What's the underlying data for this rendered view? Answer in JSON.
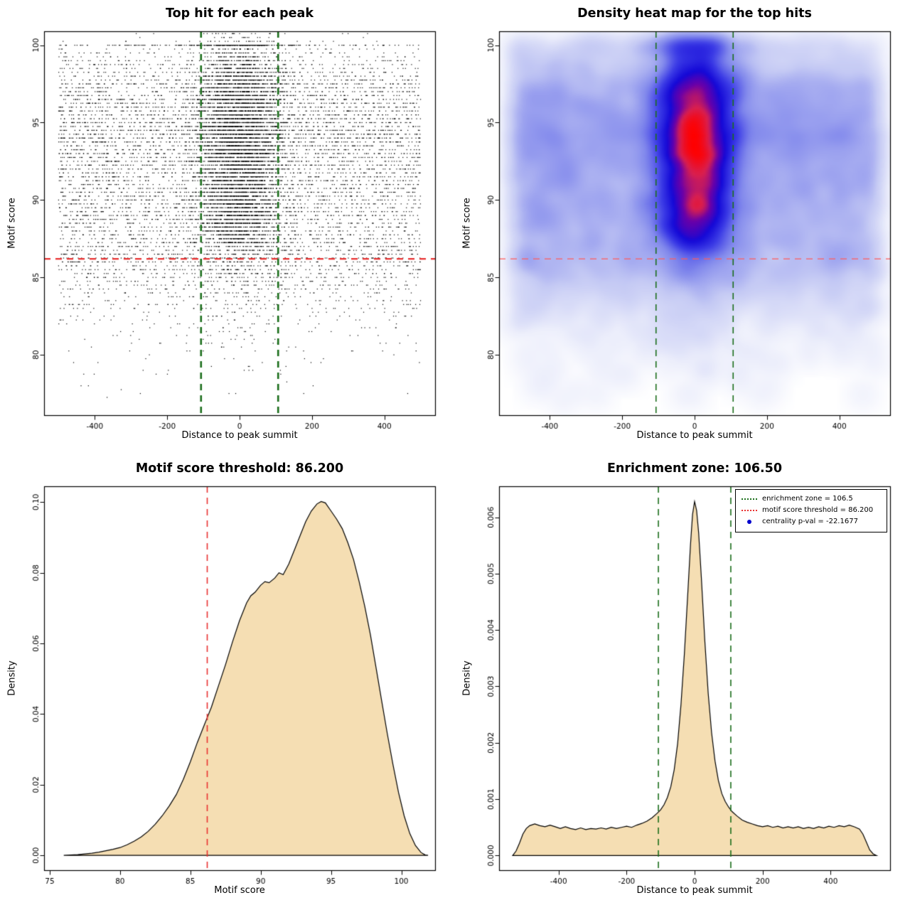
{
  "figure": {
    "background": "#ffffff"
  },
  "chart_data": [
    {
      "type": "scatter",
      "title": "Top hit for each peak",
      "xlabel": "Distance to peak summit",
      "ylabel": "Motif score",
      "xlim": [
        -540,
        540
      ],
      "ylim": [
        76.1,
        100.9
      ],
      "xticks": [
        -400,
        -200,
        0,
        200,
        400
      ],
      "xtick_labels": [
        "-400",
        "-200",
        "0",
        "200",
        "400"
      ],
      "yticks": [
        80,
        85,
        90,
        95,
        100
      ],
      "ytick_labels": [
        "80",
        "85",
        "90",
        "95",
        "100"
      ],
      "point_color": "#000000",
      "lines": [
        {
          "orientation": "h",
          "value": 86.2,
          "color": "#e93030",
          "style": "dashed",
          "width": 2.2
        },
        {
          "orientation": "v",
          "value": -106.5,
          "color": "#1b6e1b",
          "style": "dashed",
          "width": 2.6
        },
        {
          "orientation": "v",
          "value": 106.5,
          "color": "#1b6e1b",
          "style": "dashed",
          "width": 2.6
        }
      ],
      "points_model": {
        "n": 14000,
        "seed": 20240613,
        "x_range": [
          -500,
          500
        ],
        "y_range": [
          76.5,
          101.3
        ],
        "y_density_max": 0.102,
        "center_sd": 58,
        "center_frac_high": 0.5,
        "center_frac_low": 0.18,
        "top_score_frac": 0.025,
        "top_score_value": 100,
        "top_center_sd": 70,
        "score_step": 0.25
      }
    },
    {
      "type": "heatmap",
      "title": "Density heat map for the top hits",
      "xlabel": "Distance to peak summit",
      "ylabel": "Motif score",
      "xlim": [
        -540,
        540
      ],
      "ylim": [
        76.1,
        100.9
      ],
      "xticks": [
        -400,
        -200,
        0,
        200,
        400
      ],
      "xtick_labels": [
        "-400",
        "-200",
        "0",
        "200",
        "400"
      ],
      "yticks": [
        80,
        85,
        90,
        95,
        100
      ],
      "ytick_labels": [
        "80",
        "85",
        "90",
        "95",
        "100"
      ],
      "lines": [
        {
          "orientation": "h",
          "value": 86.2,
          "color": "#ff5a5a",
          "style": "dashed",
          "width": 1.4
        },
        {
          "orientation": "v",
          "value": -106.5,
          "color": "#1b6e1b",
          "style": "dashed",
          "width": 1.6
        },
        {
          "orientation": "v",
          "value": 106.5,
          "color": "#1b6e1b",
          "style": "dashed",
          "width": 1.6
        }
      ],
      "points_ref": 0,
      "kde": {
        "grid": 138,
        "sigma_cells": 3.0,
        "gamma": 0.38
      },
      "colormap": [
        {
          "t": 0,
          "color": "#ffffff"
        },
        {
          "t": 0.16,
          "color": "#eceefb"
        },
        {
          "t": 0.34,
          "color": "#c5caf4"
        },
        {
          "t": 0.52,
          "color": "#8289ec"
        },
        {
          "t": 0.66,
          "color": "#3c3ce6"
        },
        {
          "t": 0.78,
          "color": "#1408d7"
        },
        {
          "t": 0.87,
          "color": "#6a00a8"
        },
        {
          "t": 0.93,
          "color": "#d81f50"
        },
        {
          "t": 1,
          "color": "#ff0000"
        }
      ]
    },
    {
      "type": "density",
      "title": "Motif score threshold: 86.200",
      "xlabel": "Motif score",
      "ylabel": "Density",
      "xlim": [
        74.6,
        102.4
      ],
      "ylim": [
        -0.0042,
        0.1045
      ],
      "xticks": [
        75,
        80,
        85,
        90,
        95,
        100
      ],
      "xtick_labels": [
        "75",
        "80",
        "85",
        "90",
        "95",
        "100"
      ],
      "yticks": [
        0,
        0.02,
        0.04,
        0.06,
        0.08,
        0.1
      ],
      "ytick_labels": [
        "0.00",
        "0.02",
        "0.04",
        "0.06",
        "0.08",
        "0.10"
      ],
      "fill_color": "#f5deb3",
      "line_color": "#000000",
      "lines": [
        {
          "orientation": "v",
          "value": 86.2,
          "color": "#e93030",
          "style": "dashed",
          "width": 1.6
        }
      ],
      "points": [
        [
          76.0,
          0.0
        ],
        [
          76.5,
          0.0001
        ],
        [
          77,
          0.0002
        ],
        [
          77.5,
          0.0004
        ],
        [
          78,
          0.0006
        ],
        [
          78.5,
          0.0009
        ],
        [
          79,
          0.0013
        ],
        [
          79.5,
          0.0017
        ],
        [
          80,
          0.0022
        ],
        [
          80.5,
          0.003
        ],
        [
          81,
          0.004
        ],
        [
          81.5,
          0.0052
        ],
        [
          82,
          0.0068
        ],
        [
          82.5,
          0.0088
        ],
        [
          83,
          0.0112
        ],
        [
          83.5,
          0.014
        ],
        [
          84,
          0.0172
        ],
        [
          84.5,
          0.0215
        ],
        [
          85,
          0.0265
        ],
        [
          85.5,
          0.032
        ],
        [
          86,
          0.037
        ],
        [
          86.2,
          0.039
        ],
        [
          86.5,
          0.042
        ],
        [
          87,
          0.048
        ],
        [
          87.5,
          0.054
        ],
        [
          88,
          0.0605
        ],
        [
          88.5,
          0.0665
        ],
        [
          89,
          0.0715
        ],
        [
          89.3,
          0.0735
        ],
        [
          89.6,
          0.0745
        ],
        [
          90,
          0.0765
        ],
        [
          90.3,
          0.0775
        ],
        [
          90.6,
          0.0772
        ],
        [
          91,
          0.0785
        ],
        [
          91.3,
          0.08
        ],
        [
          91.6,
          0.0795
        ],
        [
          92,
          0.0825
        ],
        [
          92.4,
          0.0865
        ],
        [
          92.8,
          0.0905
        ],
        [
          93.2,
          0.0945
        ],
        [
          93.6,
          0.0975
        ],
        [
          94,
          0.0995
        ],
        [
          94.3,
          0.1002
        ],
        [
          94.6,
          0.0998
        ],
        [
          95,
          0.0975
        ],
        [
          95.4,
          0.0952
        ],
        [
          95.8,
          0.0925
        ],
        [
          96.2,
          0.0885
        ],
        [
          96.6,
          0.0838
        ],
        [
          97,
          0.0775
        ],
        [
          97.4,
          0.0705
        ],
        [
          97.8,
          0.0625
        ],
        [
          98.2,
          0.0532
        ],
        [
          98.6,
          0.0438
        ],
        [
          99,
          0.0345
        ],
        [
          99.4,
          0.0258
        ],
        [
          99.8,
          0.0178
        ],
        [
          100.2,
          0.0112
        ],
        [
          100.6,
          0.0062
        ],
        [
          101,
          0.0028
        ],
        [
          101.4,
          0.0008
        ],
        [
          101.7,
          0.0001
        ],
        [
          101.9,
          0
        ]
      ]
    },
    {
      "type": "density",
      "title": "Enrichment zone: 106.50",
      "xlabel": "Distance to peak summit",
      "ylabel": "Density",
      "xlim": [
        -575,
        575
      ],
      "ylim": [
        -0.00026,
        0.00655
      ],
      "xticks": [
        -400,
        -200,
        0,
        200,
        400
      ],
      "xtick_labels": [
        "-400",
        "-200",
        "0",
        "200",
        "400"
      ],
      "yticks": [
        0,
        0.001,
        0.002,
        0.003,
        0.004,
        0.005,
        0.006
      ],
      "ytick_labels": [
        "0.000",
        "0.001",
        "0.002",
        "0.003",
        "0.004",
        "0.005",
        "0.006"
      ],
      "fill_color": "#f5deb3",
      "line_color": "#000000",
      "lines": [
        {
          "orientation": "v",
          "value": -106.5,
          "color": "#1b6e1b",
          "style": "dashed",
          "width": 1.6
        },
        {
          "orientation": "v",
          "value": 106.5,
          "color": "#1b6e1b",
          "style": "dashed",
          "width": 1.6
        }
      ],
      "points": [
        [
          -535,
          0
        ],
        [
          -525,
          8e-05
        ],
        [
          -515,
          0.00022
        ],
        [
          -505,
          0.00038
        ],
        [
          -495,
          0.00048
        ],
        [
          -485,
          0.00053
        ],
        [
          -470,
          0.00056
        ],
        [
          -455,
          0.00053
        ],
        [
          -440,
          0.00051
        ],
        [
          -425,
          0.00054
        ],
        [
          -410,
          0.00051
        ],
        [
          -395,
          0.00048
        ],
        [
          -380,
          0.00051
        ],
        [
          -365,
          0.00048
        ],
        [
          -350,
          0.00046
        ],
        [
          -335,
          0.00049
        ],
        [
          -320,
          0.00046
        ],
        [
          -305,
          0.00048
        ],
        [
          -290,
          0.00047
        ],
        [
          -275,
          0.00049
        ],
        [
          -260,
          0.00047
        ],
        [
          -245,
          0.0005
        ],
        [
          -230,
          0.00048
        ],
        [
          -215,
          0.0005
        ],
        [
          -200,
          0.00052
        ],
        [
          -185,
          0.0005
        ],
        [
          -170,
          0.00054
        ],
        [
          -155,
          0.00057
        ],
        [
          -140,
          0.00061
        ],
        [
          -125,
          0.00067
        ],
        [
          -110,
          0.00075
        ],
        [
          -100,
          0.00081
        ],
        [
          -90,
          0.0009
        ],
        [
          -80,
          0.00103
        ],
        [
          -70,
          0.00122
        ],
        [
          -60,
          0.00152
        ],
        [
          -50,
          0.00198
        ],
        [
          -40,
          0.00268
        ],
        [
          -30,
          0.00358
        ],
        [
          -20,
          0.00465
        ],
        [
          -12,
          0.00552
        ],
        [
          -6,
          0.00605
        ],
        [
          0,
          0.00628
        ],
        [
          6,
          0.00612
        ],
        [
          12,
          0.00572
        ],
        [
          20,
          0.00492
        ],
        [
          30,
          0.00382
        ],
        [
          40,
          0.00288
        ],
        [
          50,
          0.00218
        ],
        [
          60,
          0.00168
        ],
        [
          70,
          0.00133
        ],
        [
          80,
          0.0011
        ],
        [
          90,
          0.00096
        ],
        [
          100,
          0.00086
        ],
        [
          110,
          0.00078
        ],
        [
          125,
          0.0007
        ],
        [
          140,
          0.00063
        ],
        [
          155,
          0.00059
        ],
        [
          170,
          0.00056
        ],
        [
          185,
          0.00053
        ],
        [
          200,
          0.00051
        ],
        [
          215,
          0.00053
        ],
        [
          230,
          0.0005
        ],
        [
          245,
          0.00052
        ],
        [
          260,
          0.00049
        ],
        [
          275,
          0.00051
        ],
        [
          290,
          0.00049
        ],
        [
          305,
          0.00051
        ],
        [
          320,
          0.00048
        ],
        [
          335,
          0.0005
        ],
        [
          350,
          0.00048
        ],
        [
          365,
          0.00051
        ],
        [
          380,
          0.00049
        ],
        [
          395,
          0.00052
        ],
        [
          410,
          0.0005
        ],
        [
          425,
          0.00053
        ],
        [
          440,
          0.00051
        ],
        [
          455,
          0.00054
        ],
        [
          470,
          0.00051
        ],
        [
          485,
          0.00047
        ],
        [
          495,
          0.00038
        ],
        [
          505,
          0.00024
        ],
        [
          515,
          0.0001
        ],
        [
          525,
          3e-05
        ],
        [
          535,
          0
        ]
      ],
      "legend": [
        {
          "label": "enrichment zone = 106.5",
          "color": "#1b6e1b",
          "marker": "dotted-line"
        },
        {
          "label": "motif score threshold = 86.200",
          "color": "#e93030",
          "marker": "dotted-line"
        },
        {
          "label": "centrality p-val = -22.1677",
          "color": "#0000cd",
          "marker": "point"
        }
      ]
    }
  ]
}
